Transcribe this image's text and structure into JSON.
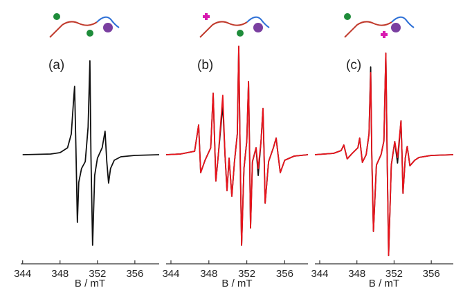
{
  "chart_data": [
    {
      "type": "line",
      "title": "(a)",
      "xlabel": "B / mT",
      "xlim": [
        343.8,
        358.6
      ],
      "ylim": [
        -158,
        160
      ],
      "xticks": [
        344,
        348,
        352,
        356
      ],
      "x": [
        344.0,
        347.0,
        348.0,
        348.8,
        349.2,
        349.45,
        349.56,
        349.7,
        349.85,
        350.0,
        350.3,
        350.7,
        351.0,
        351.19,
        351.3,
        351.48,
        351.7,
        352.0,
        352.5,
        352.81,
        353.0,
        353.19,
        353.4,
        353.8,
        354.5,
        356.0,
        358.6
      ],
      "series": [
        {
          "color": "#111111",
          "values": [
            0,
            1,
            3,
            10,
            30,
            80,
            99,
            10,
            -98,
            -40,
            -20,
            -10,
            40,
            136,
            0,
            -131,
            -30,
            -5,
            10,
            34,
            -10,
            -41,
            -20,
            -8,
            -3,
            -1,
            0
          ]
        }
      ]
    },
    {
      "type": "line",
      "title": "(b)",
      "xlabel": "B / mT",
      "xlim": [
        343.49,
        358.45
      ],
      "ylim": [
        -158,
        160
      ],
      "xticks": [
        344,
        348,
        352,
        356
      ],
      "x": [
        343.5,
        345.0,
        346.5,
        346.92,
        347.14,
        347.6,
        348.2,
        348.45,
        348.74,
        349.0,
        349.47,
        349.7,
        349.91,
        350.13,
        350.42,
        350.7,
        351.0,
        351.15,
        351.3,
        351.45,
        351.7,
        352.0,
        352.18,
        352.3,
        352.39,
        352.6,
        352.98,
        353.2,
        353.5,
        353.71,
        353.82,
        353.93,
        354.3,
        354.8,
        355.09,
        355.3,
        355.53,
        356.0,
        357.0,
        358.45
      ],
      "series": [
        {
          "color": "#111111",
          "values": [
            0,
            1,
            5,
            43,
            -26,
            -8,
            10,
            89,
            -38,
            0,
            72,
            0,
            -52,
            -5,
            -60,
            -10,
            30,
            157,
            0,
            -131,
            -20,
            20,
            106,
            0,
            -106,
            -10,
            10,
            -30,
            20,
            67,
            0,
            -70,
            -10,
            10,
            24,
            0,
            -26,
            -8,
            -2,
            0
          ]
        },
        {
          "color": "#e8141c",
          "values": [
            0,
            1,
            5,
            43,
            -26,
            -8,
            10,
            89,
            -38,
            0,
            86,
            0,
            -52,
            -5,
            -60,
            -10,
            30,
            157,
            0,
            -131,
            -20,
            20,
            106,
            0,
            -106,
            -10,
            10,
            -20,
            20,
            67,
            0,
            -70,
            -10,
            10,
            24,
            0,
            -26,
            -8,
            -2,
            0
          ]
        }
      ]
    },
    {
      "type": "line",
      "title": "(c)",
      "xlabel": "B / mT",
      "xlim": [
        343.48,
        358.37
      ],
      "ylim": [
        -158,
        160
      ],
      "xticks": [
        344,
        348,
        352,
        356
      ],
      "x": [
        343.48,
        345.5,
        346.3,
        346.59,
        346.96,
        347.5,
        348.1,
        348.3,
        348.59,
        349.0,
        349.3,
        349.48,
        349.6,
        349.78,
        350.1,
        350.6,
        350.9,
        351.11,
        351.25,
        351.41,
        351.7,
        352.07,
        352.37,
        352.74,
        352.85,
        352.96,
        353.2,
        353.41,
        353.7,
        354.22,
        354.67,
        356.0,
        358.37
      ],
      "series": [
        {
          "color": "#111111",
          "values": [
            0,
            2,
            6,
            14,
            -6,
            2,
            10,
            24,
            -11,
            0,
            30,
            127,
            0,
            -111,
            -15,
            0,
            20,
            147,
            0,
            -146,
            -15,
            19,
            -12,
            49,
            0,
            -56,
            -5,
            12,
            -16,
            -8,
            -4,
            -1,
            0
          ]
        },
        {
          "color": "#e8141c",
          "values": [
            0,
            2,
            6,
            14,
            -6,
            2,
            10,
            24,
            -11,
            0,
            30,
            119,
            0,
            -111,
            -15,
            0,
            20,
            147,
            0,
            -146,
            -15,
            19,
            -4,
            49,
            0,
            -56,
            -5,
            12,
            -16,
            -8,
            -4,
            -1,
            0
          ]
        }
      ]
    }
  ]
}
